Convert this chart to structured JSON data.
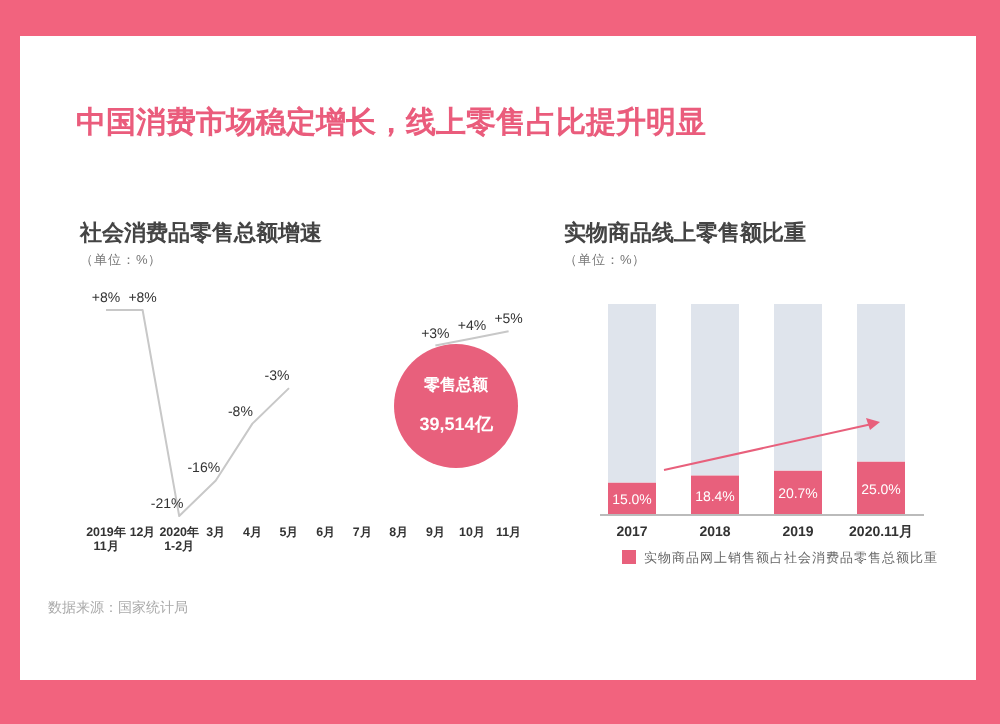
{
  "chart_data": [
    {
      "type": "line",
      "title": "中国消费市场稳定增长，线上零售占比提升明显",
      "subtitle": "社会消费品零售总额增速",
      "ylabel": "（单位：%）",
      "categories": [
        "2019年\n11月",
        "12月",
        "2020年\n1-2月",
        "3月",
        "4月",
        "5月",
        "6月",
        "7月",
        "8月",
        "9月",
        "10月",
        "11月"
      ],
      "series": [
        {
          "color": "#c8c8c8",
          "values": [
            8,
            8,
            -21,
            -16,
            -8,
            -3,
            null,
            null,
            null,
            3,
            4,
            5
          ],
          "value_labels": [
            "+8%",
            "+8%",
            "-21%",
            "-16%",
            "-8%",
            "-3%",
            null,
            null,
            null,
            "+3%",
            "+4%",
            "+5%"
          ]
        }
      ],
      "marker": "none",
      "annotations": [
        "零售总额",
        "39,514亿",
        "数据来源：国家统计局"
      ]
    },
    {
      "type": "bar",
      "stacked": true,
      "subtitle": "实物商品线上零售额比重",
      "ylabel": "（单位：%）",
      "categories": [
        "2017",
        "2018",
        "2019",
        "2020.11月"
      ],
      "series": [
        {
          "name": "实物商品网上销售额占社会消费品零售总额比重",
          "color": "#e8607c",
          "values": [
            15.0,
            18.4,
            20.7,
            25.0
          ],
          "value_labels": [
            "15.0%",
            "18.4%",
            "20.7%",
            "25.0%"
          ]
        },
        {
          "color": "#dfe4ec",
          "values": [
            85.0,
            81.6,
            79.3,
            75.0
          ]
        }
      ],
      "legend": "bottom"
    }
  ]
}
